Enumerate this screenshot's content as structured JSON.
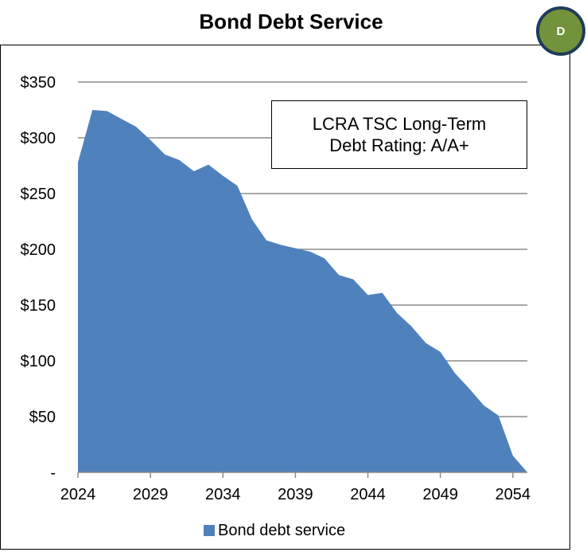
{
  "badge": {
    "label": "D"
  },
  "chart_data": {
    "type": "area",
    "title": "Bond Debt Service",
    "annotation_lines": [
      "LCRA TSC Long-Term",
      "Debt Rating: A/A+"
    ],
    "legend_label": "Bond debt service",
    "legend_placement": "bottom",
    "grid": true,
    "ylim": [
      0,
      350
    ],
    "xlim": [
      2024,
      2055
    ],
    "y_ticks": [
      0,
      50,
      100,
      150,
      200,
      250,
      300,
      350
    ],
    "y_tick_labels": [
      "-",
      "$50",
      "$100",
      "$150",
      "$200",
      "$250",
      "$300",
      "$350"
    ],
    "x_ticks": [
      2024,
      2029,
      2034,
      2039,
      2044,
      2049,
      2054
    ],
    "x_tick_labels": [
      "2024",
      "2029",
      "2034",
      "2039",
      "2044",
      "2049",
      "2054"
    ],
    "color": "#4f81bd",
    "x": [
      2024,
      2025,
      2026,
      2027,
      2028,
      2029,
      2030,
      2031,
      2032,
      2033,
      2034,
      2035,
      2036,
      2037,
      2038,
      2039,
      2040,
      2041,
      2042,
      2043,
      2044,
      2045,
      2046,
      2047,
      2048,
      2049,
      2050,
      2051,
      2052,
      2053,
      2054,
      2055
    ],
    "series": [
      {
        "name": "Bond debt service",
        "values": [
          278,
          325,
          324,
          317,
          310,
          298,
          285,
          280,
          270,
          276,
          266,
          257,
          227,
          208,
          204,
          201,
          198,
          192,
          177,
          173,
          159,
          161,
          143,
          131,
          116,
          108,
          89,
          75,
          60,
          51,
          15,
          0
        ]
      }
    ]
  }
}
